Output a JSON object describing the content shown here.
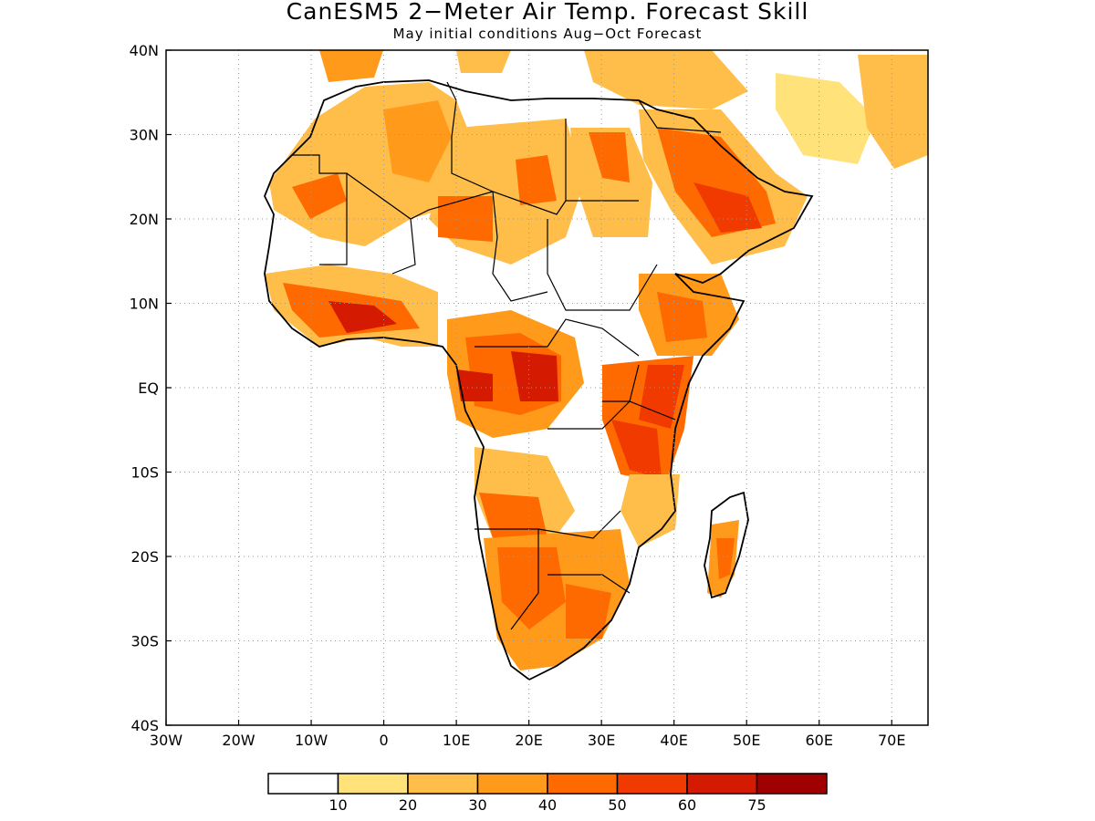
{
  "title": "CanESM5 2−Meter Air Temp. Forecast Skill",
  "subtitle": "May initial conditions  Aug−Oct Forecast",
  "map": {
    "lon_range": [
      -30,
      75
    ],
    "lat_range": [
      -40,
      40
    ],
    "x_ticks": [
      "30W",
      "20W",
      "10W",
      "0",
      "10E",
      "20E",
      "30E",
      "40E",
      "50E",
      "60E",
      "70E"
    ],
    "y_ticks": [
      "40N",
      "30N",
      "20N",
      "10N",
      "EQ",
      "10S",
      "20S",
      "30S",
      "40S"
    ],
    "grid": "dotted"
  },
  "colorbar": {
    "labels": [
      "10",
      "20",
      "30",
      "40",
      "50",
      "60",
      "75"
    ],
    "colors": [
      "#ffffff",
      "#ffe27a",
      "#ffbd4a",
      "#ff9a1a",
      "#ff6a00",
      "#f03a00",
      "#d41a00",
      "#a00000"
    ]
  }
}
